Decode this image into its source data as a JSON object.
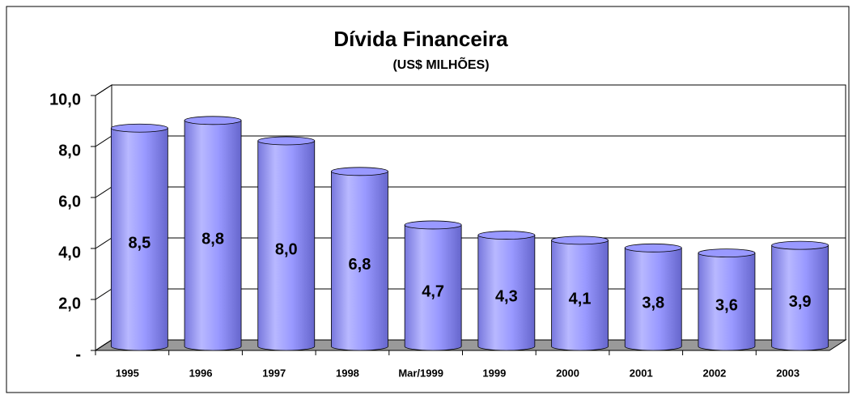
{
  "chart_data": {
    "type": "bar",
    "title": "Dívida Financeira",
    "subtitle": "(US$ MILHÕES)",
    "categories": [
      "1995",
      "1996",
      "1997",
      "1998",
      "Mar/1999",
      "1999",
      "2000",
      "2001",
      "2002",
      "2003"
    ],
    "values": [
      8.5,
      8.8,
      8.0,
      6.8,
      4.7,
      4.3,
      4.1,
      3.8,
      3.6,
      3.9
    ],
    "value_labels": [
      "8,5",
      "8,8",
      "8,0",
      "6,8",
      "4,7",
      "4,3",
      "4,1",
      "3,8",
      "3,6",
      "3,9"
    ],
    "color": "#9999ff",
    "ylim": [
      0,
      10
    ],
    "yticks": [
      {
        "value": 0,
        "label": "-"
      },
      {
        "value": 2,
        "label": "2,0"
      },
      {
        "value": 4,
        "label": "4,0"
      },
      {
        "value": 6,
        "label": "6,0"
      },
      {
        "value": 8,
        "label": "8,0"
      },
      {
        "value": 10,
        "label": "10,0"
      }
    ],
    "grid": true
  }
}
